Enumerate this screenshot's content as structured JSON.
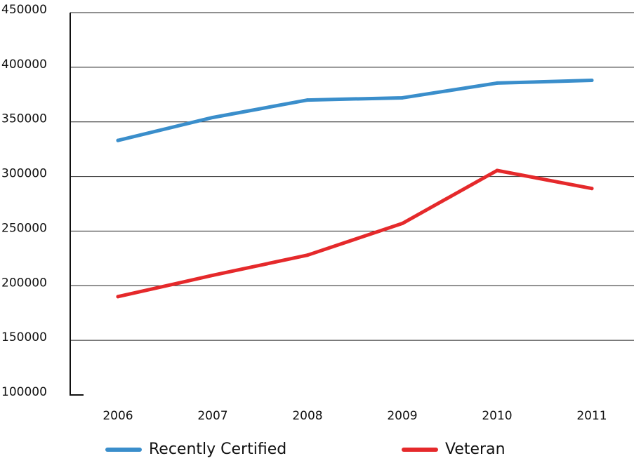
{
  "chart_data": {
    "type": "line",
    "title": "",
    "xlabel": "",
    "ylabel": "",
    "categories": [
      "2006",
      "2007",
      "2008",
      "2009",
      "2010",
      "2011"
    ],
    "ylim": [
      100000,
      450000
    ],
    "yticks": [
      100000,
      150000,
      200000,
      250000,
      300000,
      350000,
      400000,
      450000
    ],
    "ytick_labels": [
      "100000",
      "150000",
      "200000",
      "250000",
      "300000",
      "350000",
      "400000",
      "450000"
    ],
    "grid": true,
    "legend_position": "bottom",
    "series": [
      {
        "name": "Recently Certified",
        "color": "#3a8ecb",
        "values": [
          333000,
          354000,
          370000,
          372000,
          385500,
          388000
        ]
      },
      {
        "name": "Veteran",
        "color": "#e5292b",
        "values": [
          190000,
          209500,
          228000,
          257000,
          305500,
          289000
        ]
      }
    ]
  }
}
